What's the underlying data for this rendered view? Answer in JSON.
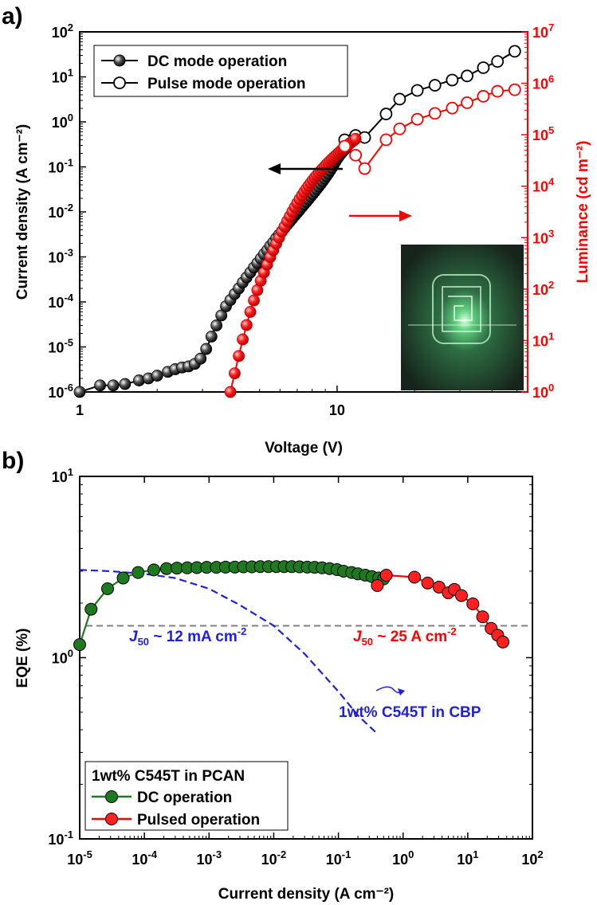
{
  "panel_labels": {
    "a": "a)",
    "b": "b)"
  },
  "colors": {
    "black": "#000000",
    "red": "#ff0000",
    "green": "#1f7a1f",
    "blue": "#1f1fe0",
    "gray": "#808080"
  },
  "chart_data": [
    {
      "type": "scatter",
      "panel": "a",
      "xlabel": "Voltage (V)",
      "ylabel_left": "Current density (A cm⁻²)",
      "ylabel_right": "Luminance (cd m⁻²)",
      "x_scale": "log",
      "y_scale": "log",
      "xlim": [
        1,
        55
      ],
      "ylim_left": [
        1e-06,
        100
      ],
      "ylim_right": [
        1,
        10000000.0
      ],
      "x_ticks": [
        1,
        10
      ],
      "y_ticks_left": [
        "10^-6",
        "10^-5",
        "10^-4",
        "10^-3",
        "10^-2",
        "10^-1",
        "10^0",
        "10^1",
        "10^2"
      ],
      "y_ticks_right": [
        "10^0",
        "10^1",
        "10^2",
        "10^3",
        "10^4",
        "10^5",
        "10^6",
        "10^7"
      ],
      "legend": {
        "position": "top-left",
        "entries": [
          "DC mode operation",
          "Pulse mode operation"
        ]
      },
      "series": [
        {
          "name": "DC mode operation",
          "axis": "left",
          "color": "black",
          "marker": "filled",
          "x": [
            1.0,
            1.2,
            1.35,
            1.5,
            1.7,
            1.85,
            2.0,
            2.2,
            2.35,
            2.5,
            2.65,
            2.8,
            2.95,
            3.1,
            3.25,
            3.4,
            3.55,
            3.7,
            3.85,
            4.0,
            4.15,
            4.3,
            4.45,
            4.6,
            4.75,
            4.9,
            5.05,
            5.2,
            5.35,
            5.5,
            5.65,
            5.8,
            5.95,
            6.1,
            6.25,
            6.4,
            6.55,
            6.7,
            6.85,
            7.0,
            7.15,
            7.3,
            7.45,
            7.6,
            7.75,
            7.9,
            8.05,
            8.2,
            8.35,
            8.5,
            8.65,
            8.8,
            8.95,
            9.1,
            9.25,
            9.4,
            9.55,
            9.7,
            9.85,
            10.0,
            10.15,
            10.3,
            10.45,
            10.6,
            10.75,
            10.9,
            11.05,
            11.2,
            11.35,
            11.5,
            11.65,
            11.8
          ],
          "y": [
            1e-06,
            1.4e-06,
            1.4e-06,
            1.5e-06,
            1.8e-06,
            2e-06,
            2.3e-06,
            2.8e-06,
            3.2e-06,
            3.5e-06,
            3.7e-06,
            4.2e-06,
            5.5e-06,
            9e-06,
            1.7e-05,
            3e-05,
            5e-05,
            8e-05,
            0.00011,
            0.00015,
            0.0002,
            0.00027,
            0.00035,
            0.00045,
            0.00058,
            0.00073,
            0.00092,
            0.00115,
            0.0014,
            0.00175,
            0.0021,
            0.0026,
            0.0031,
            0.0037,
            0.0044,
            0.0052,
            0.0061,
            0.0071,
            0.0083,
            0.0096,
            0.011,
            0.0128,
            0.0147,
            0.0168,
            0.0192,
            0.022,
            0.025,
            0.0285,
            0.0325,
            0.037,
            0.042,
            0.048,
            0.055,
            0.063,
            0.072,
            0.083,
            0.096,
            0.112,
            0.13,
            0.15,
            0.17,
            0.19,
            0.21,
            0.23,
            0.25,
            0.28,
            0.31,
            0.34,
            0.37,
            0.41,
            0.45,
            0.5
          ]
        },
        {
          "name": "Pulse mode operation",
          "axis": "left",
          "color": "black",
          "marker": "open",
          "x": [
            10.7,
            11.8,
            12.8,
            15.5,
            17.5,
            20.5,
            24,
            28,
            32,
            37,
            42,
            49
          ],
          "y": [
            0.4,
            0.5,
            0.45,
            1.5,
            3.2,
            5.0,
            6.5,
            8.5,
            10.5,
            16,
            22,
            37
          ]
        },
        {
          "name": "DC luminance",
          "axis": "right",
          "color": "red",
          "marker": "filled",
          "x": [
            3.85,
            4.0,
            4.15,
            4.3,
            4.45,
            4.6,
            4.75,
            4.9,
            5.05,
            5.2,
            5.35,
            5.5,
            5.65,
            5.8,
            5.95,
            6.1,
            6.25,
            6.4,
            6.55,
            6.7,
            6.85,
            7.0,
            7.15,
            7.3,
            7.45,
            7.6,
            7.75,
            7.9,
            8.05,
            8.2,
            8.35,
            8.5,
            8.65,
            8.8,
            8.95,
            9.1,
            9.25,
            9.4,
            9.55,
            9.7,
            9.85,
            10.0,
            10.15,
            10.3,
            10.45,
            10.6,
            10.75,
            10.9,
            11.05,
            11.2,
            11.35,
            11.5,
            11.65,
            11.8
          ],
          "y": [
            1.0,
            2.3,
            5.0,
            10.5,
            20,
            36,
            60,
            95,
            145,
            210,
            300,
            420,
            570,
            760,
            1000,
            1300,
            1650,
            2100,
            2600,
            3200,
            3900,
            4700,
            5600,
            6600,
            7700,
            8900,
            10200,
            11600,
            13100,
            14700,
            16400,
            18200,
            20100,
            22100,
            24200,
            26400,
            28700,
            31100,
            33600,
            36200,
            38900,
            41700,
            44600,
            47600,
            50700,
            53900,
            57200,
            60600,
            64100,
            67700,
            71400,
            75200,
            79100,
            83100
          ]
        },
        {
          "name": "Pulse luminance",
          "axis": "right",
          "color": "red",
          "marker": "open",
          "x": [
            10.7,
            11.8,
            12.8,
            15.5,
            17.5,
            20.5,
            24,
            28,
            32,
            37,
            42,
            49
          ],
          "y": [
            60000,
            40000,
            22000,
            80000,
            130000,
            200000,
            260000,
            330000,
            420000,
            560000,
            700000,
            750000
          ]
        }
      ],
      "arrows": [
        {
          "direction": "left",
          "color": "black",
          "target_axis": "left"
        },
        {
          "direction": "right",
          "color": "red",
          "target_axis": "right"
        }
      ],
      "inset": {
        "description_name": "device-photo-inset"
      }
    },
    {
      "type": "scatter",
      "panel": "b",
      "xlabel": "Current density (A cm⁻²)",
      "ylabel": "EQE (%)",
      "x_scale": "log",
      "y_scale": "log",
      "xlim": [
        1e-05,
        100
      ],
      "ylim": [
        0.1,
        10
      ],
      "x_ticks": [
        "10^-5",
        "10^-4",
        "10^-3",
        "10^-2",
        "10^-1",
        "10^0",
        "10^1",
        "10^2"
      ],
      "y_ticks": [
        "10^-1",
        "10^0",
        "10^1"
      ],
      "legend": {
        "position": "bottom-left",
        "title": "1wt% C545T in PCAN",
        "entries": [
          "DC operation",
          "Pulsed operation"
        ]
      },
      "series": [
        {
          "name": "DC operation",
          "color": "green",
          "marker": "filled",
          "x": [
            1e-05,
            1.5e-05,
            2.7e-05,
            4.7e-05,
            8e-05,
            0.00014,
            0.00022,
            0.00032,
            0.00046,
            0.00065,
            0.00092,
            0.0013,
            0.0018,
            0.0025,
            0.0034,
            0.0046,
            0.0062,
            0.0083,
            0.011,
            0.0145,
            0.019,
            0.025,
            0.033,
            0.043,
            0.056,
            0.073,
            0.095,
            0.12,
            0.16,
            0.2,
            0.26,
            0.33,
            0.42,
            0.5
          ],
          "y": [
            1.18,
            1.85,
            2.4,
            2.75,
            2.95,
            3.05,
            3.1,
            3.12,
            3.13,
            3.14,
            3.15,
            3.15,
            3.16,
            3.16,
            3.17,
            3.17,
            3.18,
            3.18,
            3.18,
            3.18,
            3.18,
            3.17,
            3.16,
            3.15,
            3.13,
            3.1,
            3.06,
            3.0,
            2.95,
            2.9,
            2.85,
            2.8,
            2.75,
            2.72
          ]
        },
        {
          "name": "Pulsed operation",
          "color": "red",
          "marker": "filled",
          "x": [
            0.4,
            0.55,
            1.5,
            2.4,
            3.6,
            5.0,
            6.2,
            8.0,
            12,
            17,
            23,
            29,
            35
          ],
          "y": [
            2.5,
            2.85,
            2.78,
            2.58,
            2.45,
            2.28,
            2.38,
            2.2,
            1.98,
            1.68,
            1.45,
            1.33,
            1.22
          ]
        },
        {
          "name": "1wt% C545T in CBP",
          "color": "blue",
          "style": "dashed",
          "x": [
            1e-05,
            3e-05,
            0.0001,
            0.0003,
            0.001,
            0.003,
            0.01,
            0.03,
            0.1,
            0.2,
            0.4
          ],
          "y": [
            3.05,
            3.0,
            2.9,
            2.75,
            2.4,
            1.95,
            1.5,
            1.05,
            0.65,
            0.48,
            0.38
          ]
        }
      ],
      "j50_line": {
        "y": 1.5,
        "style": "dashed",
        "color": "gray"
      },
      "annotations": [
        {
          "name": "j50-blue",
          "italic": "J",
          "sub": "50",
          "text": " ~ 12 mA cm",
          "sup": "-2",
          "color": "blue"
        },
        {
          "name": "j50-red",
          "italic": "J",
          "sub": "50",
          "text": " ~ 25 A cm",
          "sup": "-2",
          "color": "red"
        },
        {
          "name": "cbp-label",
          "text": "1wt% C545T in CBP",
          "color": "blue"
        }
      ]
    }
  ]
}
